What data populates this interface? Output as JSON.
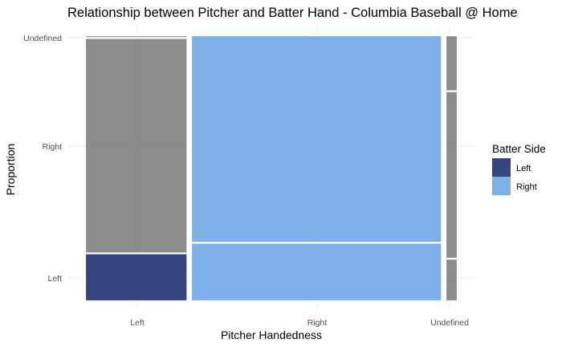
{
  "chart_data": {
    "type": "mosaic",
    "title": "Relationship between Pitcher and Batter Hand - Columbia Baseball @ Home",
    "xlabel": "Pitcher Handedness",
    "ylabel": "Proportion",
    "x_categories": [
      "Left",
      "Right",
      "Undefined"
    ],
    "y_categories": [
      "Left",
      "Right",
      "Undefined"
    ],
    "x_widths": [
      0.288,
      0.706,
      0.034
    ],
    "cells": [
      {
        "x": "Left",
        "y": "Left",
        "fill": "Left",
        "proportion": 0.18
      },
      {
        "x": "Left",
        "y": "Right",
        "fill": "Undefined",
        "proportion": 0.81
      },
      {
        "x": "Left",
        "y": "Undefined",
        "fill": "Undefined",
        "proportion": 0.01
      },
      {
        "x": "Right",
        "y": "Left",
        "fill": "Right",
        "proportion": 0.22
      },
      {
        "x": "Right",
        "y": "Right",
        "fill": "Right",
        "proportion": 0.78
      },
      {
        "x": "Right",
        "y": "Undefined",
        "fill": "Undefined",
        "proportion": 0.0
      },
      {
        "x": "Undefined",
        "y": "Left",
        "fill": "Undefined",
        "proportion": 0.16
      },
      {
        "x": "Undefined",
        "y": "Right",
        "fill": "Undefined",
        "proportion": 0.63
      },
      {
        "x": "Undefined",
        "y": "Undefined",
        "fill": "Undefined",
        "proportion": 0.21
      }
    ],
    "legend": {
      "title": "Batter Side",
      "position": "right",
      "items": [
        {
          "label": "Left",
          "color": "#213170"
        },
        {
          "label": "Right",
          "color": "#6ea7e4"
        }
      ]
    },
    "colors": {
      "Left": "#213170",
      "Right": "#6ea7e4",
      "Undefined": "#808080"
    },
    "grid": true
  }
}
